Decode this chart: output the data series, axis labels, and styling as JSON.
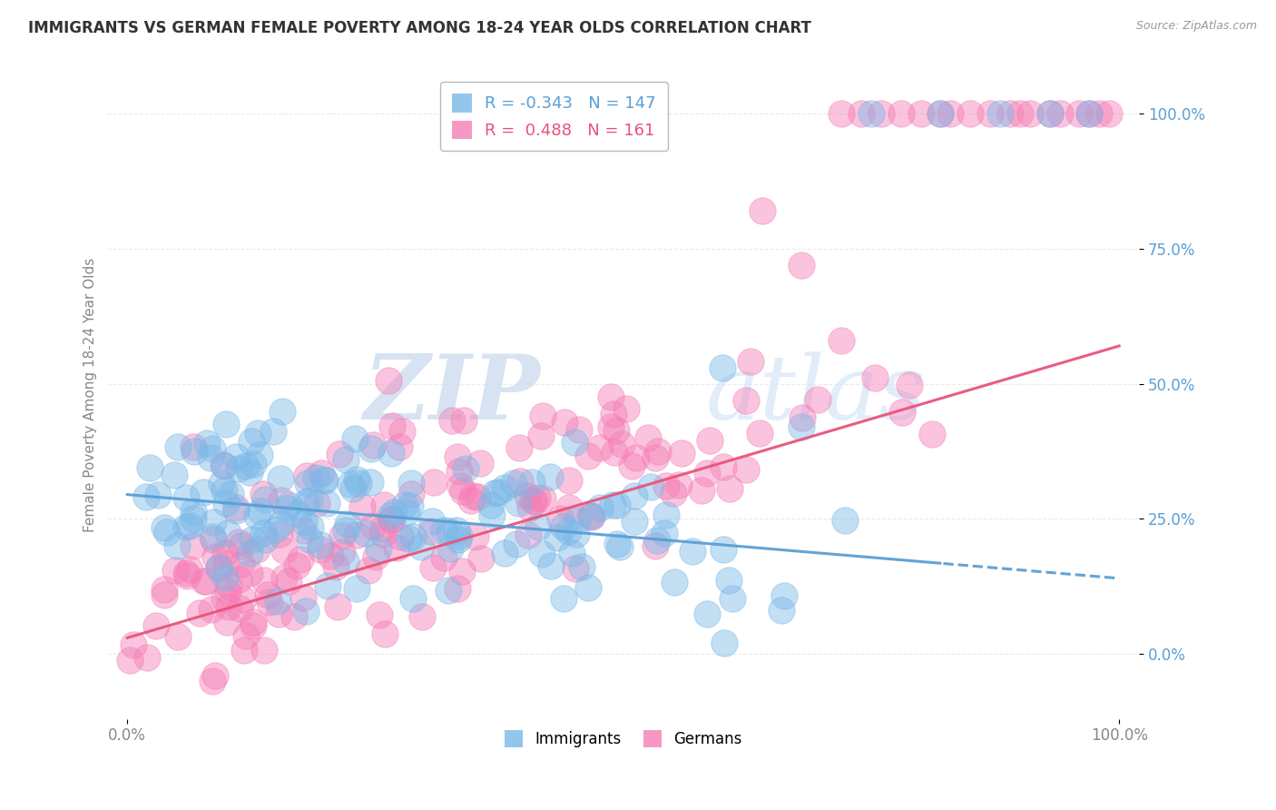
{
  "title": "IMMIGRANTS VS GERMAN FEMALE POVERTY AMONG 18-24 YEAR OLDS CORRELATION CHART",
  "source": "Source: ZipAtlas.com",
  "ylabel": "Female Poverty Among 18-24 Year Olds",
  "xlim": [
    -0.02,
    1.02
  ],
  "ylim": [
    -0.12,
    1.08
  ],
  "xtick_positions": [
    0.0,
    1.0
  ],
  "xtick_labels": [
    "0.0%",
    "100.0%"
  ],
  "ytick_positions": [
    0.0,
    0.25,
    0.5,
    0.75,
    1.0
  ],
  "ytick_labels": [
    "0.0%",
    "25.0%",
    "50.0%",
    "75.0%",
    "100.0%"
  ],
  "immigrants_color": "#7ab8e8",
  "german_color": "#f57eb6",
  "immigrants_line_color": "#5a9fd4",
  "german_line_color": "#e8547a",
  "R_immigrants": -0.343,
  "N_immigrants": 147,
  "R_german": 0.488,
  "N_german": 161,
  "watermark_zip": "ZIP",
  "watermark_atlas": "atlas",
  "background_color": "#ffffff",
  "marker_size": 9,
  "marker_alpha": 0.45,
  "seed": 99,
  "imm_line_solid_end": 0.82,
  "grid_color": "#dddddd",
  "ytick_color": "#5a9fd4",
  "xtick_color": "#888888",
  "title_color": "#333333",
  "source_color": "#999999",
  "ylabel_color": "#888888"
}
